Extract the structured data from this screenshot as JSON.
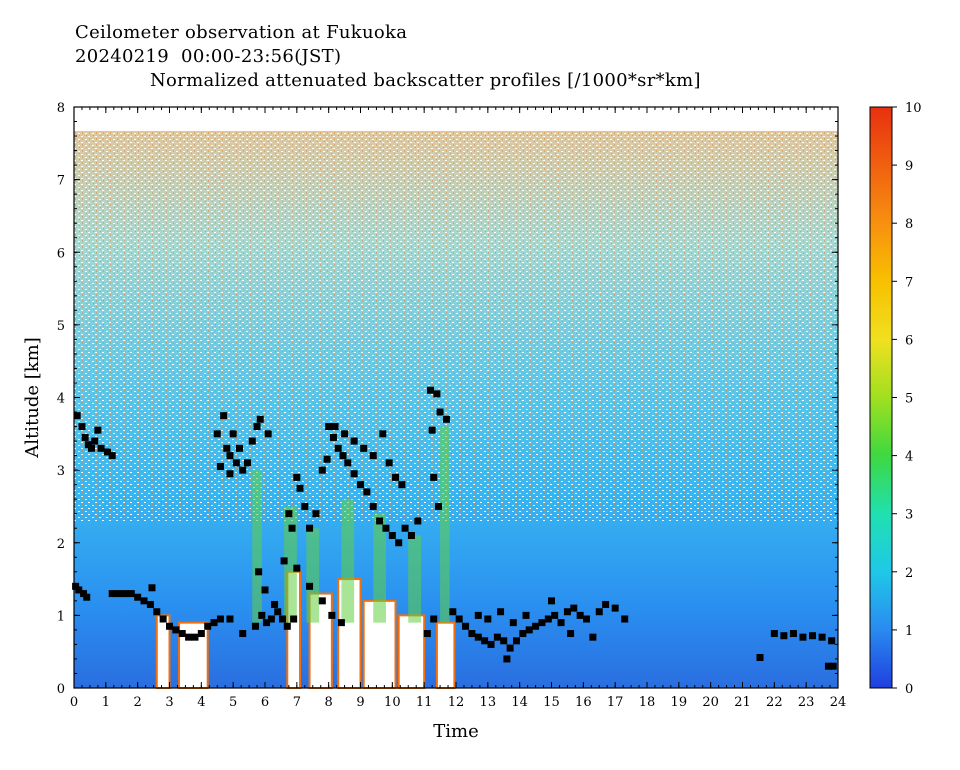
{
  "titles": {
    "line1": "Ceilometer observation at Fukuoka",
    "line2": "20240219  00:00-23:56(JST)",
    "line3": "Normalized attenuated backscatter profiles [/1000*sr*km]"
  },
  "chart_data": {
    "type": "heatmap",
    "title": "Normalized attenuated backscatter profiles [/1000*sr*km]",
    "xlabel": "Time",
    "ylabel": "Altitude [km]",
    "xlim": [
      0,
      24
    ],
    "ylim": [
      0,
      8
    ],
    "x_ticks": [
      "0",
      "1",
      "2",
      "3",
      "4",
      "5",
      "6",
      "7",
      "8",
      "9",
      "10",
      "11",
      "12",
      "13",
      "14",
      "15",
      "16",
      "17",
      "18",
      "19",
      "20",
      "21",
      "22",
      "23",
      "24"
    ],
    "y_ticks": [
      "0",
      "1",
      "2",
      "3",
      "4",
      "5",
      "6",
      "7",
      "8"
    ],
    "data_top_altitude_km": 7.67,
    "colorbar": {
      "range": [
        0,
        10
      ],
      "ticks": [
        "0",
        "1",
        "2",
        "3",
        "4",
        "5",
        "6",
        "7",
        "8",
        "9",
        "10"
      ],
      "colors": [
        "#1f3fe0",
        "#2a8af0",
        "#1fc8e8",
        "#20e0b0",
        "#3ed840",
        "#a0e020",
        "#f0e020",
        "#f8c000",
        "#f89010",
        "#f06010",
        "#e83010"
      ]
    },
    "cloud_base_series": {
      "name": "",
      "marker": "black-square",
      "points": [
        [
          0.1,
          3.75
        ],
        [
          0.25,
          3.6
        ],
        [
          0.35,
          3.45
        ],
        [
          0.45,
          3.35
        ],
        [
          0.55,
          3.3
        ],
        [
          0.65,
          3.4
        ],
        [
          0.75,
          3.55
        ],
        [
          0.85,
          3.3
        ],
        [
          1.05,
          3.25
        ],
        [
          1.2,
          3.2
        ],
        [
          0.05,
          1.4
        ],
        [
          0.15,
          1.35
        ],
        [
          0.3,
          1.3
        ],
        [
          0.4,
          1.25
        ],
        [
          1.2,
          1.3
        ],
        [
          1.4,
          1.3
        ],
        [
          1.6,
          1.3
        ],
        [
          1.8,
          1.3
        ],
        [
          2.0,
          1.25
        ],
        [
          2.2,
          1.2
        ],
        [
          2.4,
          1.15
        ],
        [
          2.6,
          1.05
        ],
        [
          2.8,
          0.95
        ],
        [
          3.0,
          0.85
        ],
        [
          3.2,
          0.8
        ],
        [
          3.4,
          0.75
        ],
        [
          3.6,
          0.7
        ],
        [
          3.8,
          0.7
        ],
        [
          4.0,
          0.75
        ],
        [
          4.2,
          0.85
        ],
        [
          4.4,
          0.9
        ],
        [
          4.6,
          0.95
        ],
        [
          2.45,
          1.38
        ],
        [
          4.5,
          3.5
        ],
        [
          4.7,
          3.75
        ],
        [
          4.8,
          3.3
        ],
        [
          4.9,
          3.2
        ],
        [
          5.0,
          3.5
        ],
        [
          5.1,
          3.1
        ],
        [
          5.2,
          3.3
        ],
        [
          5.3,
          3.0
        ],
        [
          5.45,
          3.1
        ],
        [
          5.6,
          3.4
        ],
        [
          5.75,
          3.6
        ],
        [
          5.85,
          3.7
        ],
        [
          6.1,
          3.5
        ],
        [
          4.6,
          3.05
        ],
        [
          4.9,
          2.95
        ],
        [
          4.9,
          0.95
        ],
        [
          5.3,
          0.75
        ],
        [
          5.7,
          0.85
        ],
        [
          5.9,
          1.0
        ],
        [
          6.05,
          0.9
        ],
        [
          6.2,
          0.95
        ],
        [
          6.4,
          1.05
        ],
        [
          6.55,
          0.95
        ],
        [
          6.7,
          0.85
        ],
        [
          6.9,
          0.95
        ],
        [
          5.8,
          1.6
        ],
        [
          6.0,
          1.35
        ],
        [
          6.3,
          1.15
        ],
        [
          6.6,
          1.75
        ],
        [
          6.75,
          2.4
        ],
        [
          6.85,
          2.2
        ],
        [
          7.0,
          2.9
        ],
        [
          7.1,
          2.75
        ],
        [
          7.25,
          2.5
        ],
        [
          7.4,
          2.2
        ],
        [
          7.6,
          2.4
        ],
        [
          7.8,
          3.0
        ],
        [
          7.95,
          3.15
        ],
        [
          8.0,
          3.6
        ],
        [
          8.15,
          3.45
        ],
        [
          8.3,
          3.3
        ],
        [
          8.45,
          3.2
        ],
        [
          8.6,
          3.1
        ],
        [
          8.8,
          2.95
        ],
        [
          9.0,
          2.8
        ],
        [
          9.2,
          2.7
        ],
        [
          9.4,
          2.5
        ],
        [
          9.6,
          2.3
        ],
        [
          9.8,
          2.2
        ],
        [
          10.0,
          2.1
        ],
        [
          10.2,
          2.0
        ],
        [
          10.4,
          2.2
        ],
        [
          10.6,
          2.1
        ],
        [
          10.8,
          2.3
        ],
        [
          8.2,
          3.6
        ],
        [
          8.5,
          3.5
        ],
        [
          8.8,
          3.4
        ],
        [
          9.1,
          3.3
        ],
        [
          9.4,
          3.2
        ],
        [
          9.7,
          3.5
        ],
        [
          9.9,
          3.1
        ],
        [
          10.1,
          2.9
        ],
        [
          10.3,
          2.8
        ],
        [
          7.0,
          1.65
        ],
        [
          7.4,
          1.4
        ],
        [
          7.8,
          1.2
        ],
        [
          8.1,
          1.0
        ],
        [
          8.4,
          0.9
        ],
        [
          11.2,
          4.1
        ],
        [
          11.4,
          4.05
        ],
        [
          11.25,
          3.55
        ],
        [
          11.5,
          3.8
        ],
        [
          11.7,
          3.7
        ],
        [
          11.3,
          2.9
        ],
        [
          11.45,
          2.5
        ],
        [
          11.1,
          0.75
        ],
        [
          11.3,
          0.95
        ],
        [
          11.9,
          1.05
        ],
        [
          12.1,
          0.95
        ],
        [
          12.3,
          0.85
        ],
        [
          12.5,
          0.75
        ],
        [
          12.7,
          0.7
        ],
        [
          12.9,
          0.65
        ],
        [
          13.1,
          0.6
        ],
        [
          13.3,
          0.7
        ],
        [
          13.5,
          0.65
        ],
        [
          13.7,
          0.55
        ],
        [
          13.9,
          0.65
        ],
        [
          14.1,
          0.75
        ],
        [
          14.3,
          0.8
        ],
        [
          14.5,
          0.85
        ],
        [
          14.7,
          0.9
        ],
        [
          14.9,
          0.95
        ],
        [
          15.1,
          1.0
        ],
        [
          15.3,
          0.9
        ],
        [
          15.5,
          1.05
        ],
        [
          15.7,
          1.1
        ],
        [
          15.9,
          1.0
        ],
        [
          16.1,
          0.95
        ],
        [
          16.5,
          1.05
        ],
        [
          16.7,
          1.15
        ],
        [
          17.0,
          1.1
        ],
        [
          17.3,
          0.95
        ],
        [
          12.7,
          1.0
        ],
        [
          13.0,
          0.95
        ],
        [
          13.4,
          1.05
        ],
        [
          13.8,
          0.9
        ],
        [
          14.2,
          1.0
        ],
        [
          15.0,
          1.2
        ],
        [
          15.6,
          0.75
        ],
        [
          16.3,
          0.7
        ],
        [
          13.6,
          0.4
        ],
        [
          21.55,
          0.42
        ],
        [
          22.0,
          0.75
        ],
        [
          22.3,
          0.72
        ],
        [
          22.6,
          0.75
        ],
        [
          22.9,
          0.7
        ],
        [
          23.2,
          0.72
        ],
        [
          23.5,
          0.7
        ],
        [
          23.8,
          0.65
        ],
        [
          23.7,
          0.3
        ],
        [
          23.85,
          0.3
        ]
      ]
    }
  }
}
